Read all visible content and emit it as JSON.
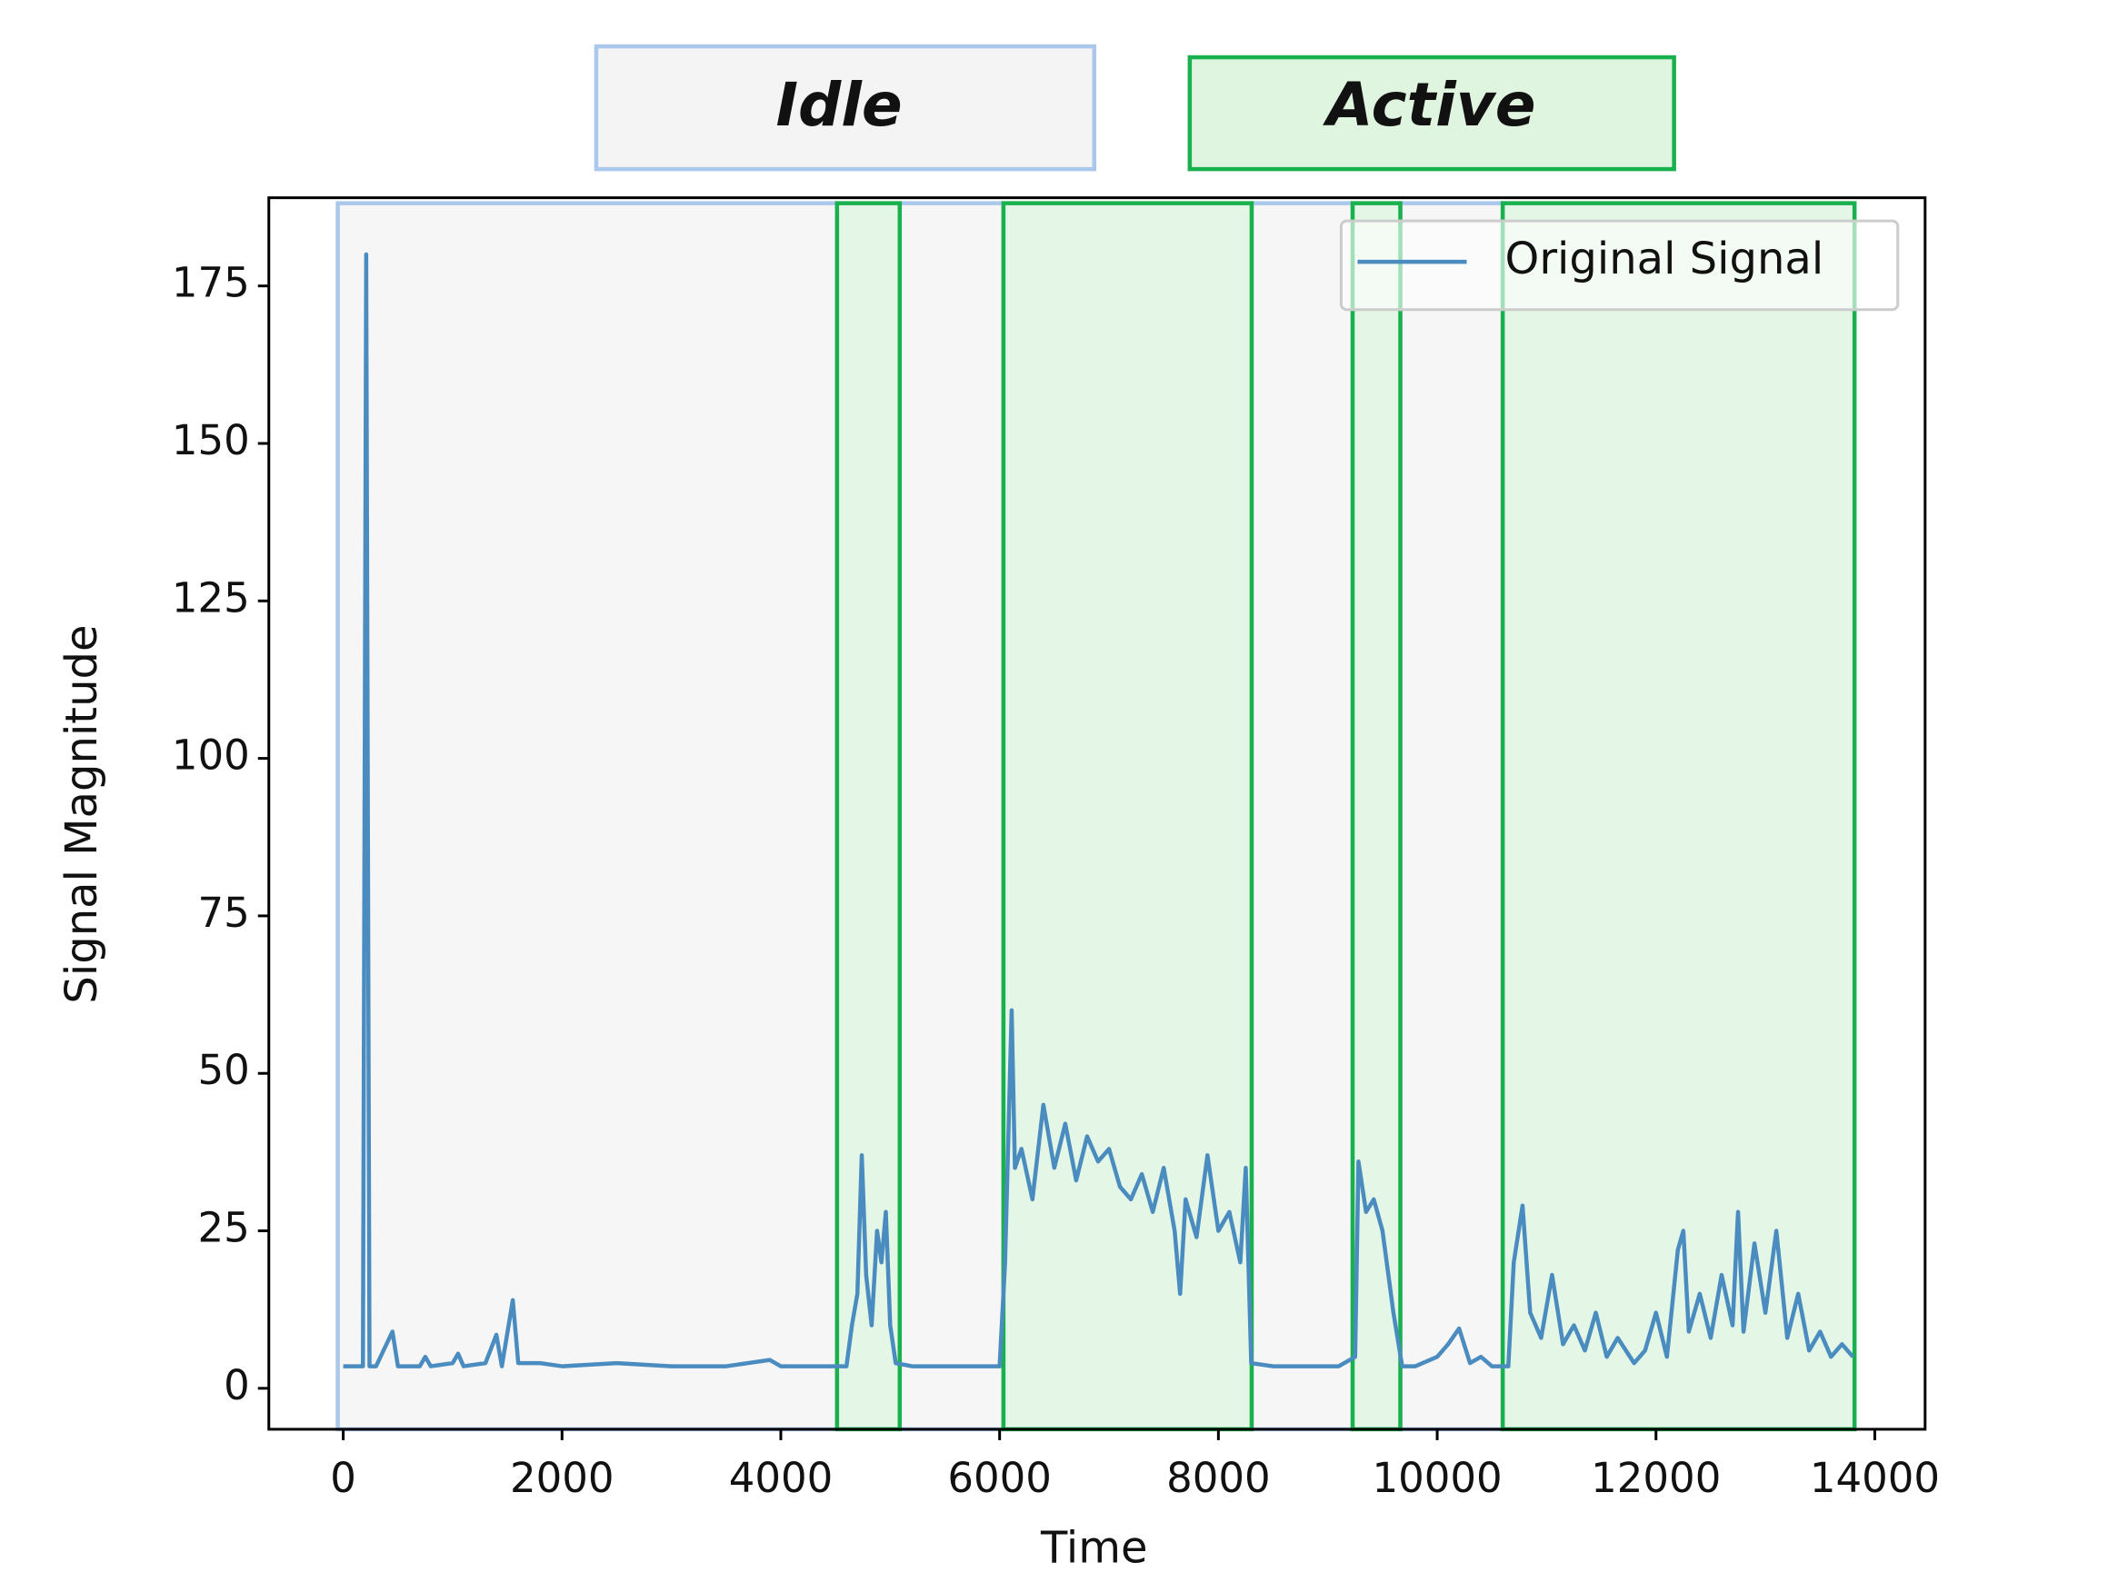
{
  "chart_data": {
    "type": "line",
    "xlabel": "Time",
    "ylabel": "Signal Magnitude",
    "xlim": [
      -680,
      14460
    ],
    "ylim": [
      -6.5,
      189
    ],
    "xticks": [
      0,
      2000,
      4000,
      6000,
      8000,
      10000,
      12000,
      14000
    ],
    "yticks": [
      0,
      25,
      50,
      75,
      100,
      125,
      150,
      175
    ],
    "legend": "upper right",
    "state_labels": [
      {
        "label": "Idle",
        "color": "#0b6fc1",
        "fill": "#f4f4f4",
        "edge": "#a9c8eb",
        "spans": [
          [
            -50,
            4514
          ],
          [
            5087,
            6035
          ],
          [
            8304,
            9227
          ],
          [
            9663,
            10599
          ]
        ]
      },
      {
        "label": "Active",
        "color": "#3a7a28",
        "fill": "#dff5e0",
        "edge": "#19b04e",
        "spans": [
          [
            4514,
            5087
          ],
          [
            6035,
            8304
          ],
          [
            9227,
            9663
          ],
          [
            10599,
            13815
          ]
        ]
      }
    ],
    "x": [
      0,
      100,
      180,
      210,
      240,
      300,
      450,
      500,
      700,
      750,
      800,
      1000,
      1050,
      1100,
      1300,
      1400,
      1450,
      1550,
      1600,
      1800,
      2000,
      2500,
      3000,
      3500,
      3900,
      4000,
      4400,
      4600,
      4650,
      4700,
      4740,
      4780,
      4830,
      4880,
      4920,
      4960,
      5000,
      5050,
      5200,
      5500,
      5800,
      6000,
      6050,
      6080,
      6110,
      6140,
      6200,
      6300,
      6400,
      6500,
      6600,
      6700,
      6800,
      6900,
      7000,
      7100,
      7200,
      7300,
      7400,
      7500,
      7600,
      7650,
      7700,
      7800,
      7900,
      8000,
      8100,
      8200,
      8250,
      8300,
      8500,
      8800,
      9100,
      9250,
      9280,
      9350,
      9420,
      9500,
      9600,
      9680,
      9800,
      10000,
      10100,
      10200,
      10300,
      10400,
      10500,
      10650,
      10700,
      10780,
      10850,
      10950,
      11050,
      11150,
      11250,
      11350,
      11450,
      11550,
      11650,
      11800,
      11900,
      12000,
      12100,
      12200,
      12250,
      12300,
      12400,
      12500,
      12600,
      12700,
      12750,
      12800,
      12900,
      13000,
      13100,
      13200,
      13300,
      13400,
      13500,
      13600,
      13700,
      13800
    ],
    "series": [
      {
        "name": "Original Signal",
        "color": "#4a8cbf",
        "values": [
          3.5,
          3.5,
          3.5,
          180,
          3.5,
          3.5,
          9,
          3.5,
          3.5,
          5,
          3.5,
          4,
          5.5,
          3.5,
          4,
          8.5,
          3.5,
          14,
          4,
          4,
          3.5,
          4,
          3.5,
          3.5,
          4.5,
          3.5,
          3.5,
          3.5,
          10,
          15,
          37,
          18,
          10,
          25,
          20,
          28,
          10,
          4,
          3.5,
          3.5,
          3.5,
          3.5,
          20,
          40,
          60,
          35,
          38,
          30,
          45,
          35,
          42,
          33,
          40,
          36,
          38,
          32,
          30,
          34,
          28,
          35,
          25,
          15,
          30,
          24,
          37,
          25,
          28,
          20,
          35,
          4,
          3.5,
          3.5,
          3.5,
          5,
          36,
          28,
          30,
          25,
          12,
          3.5,
          3.5,
          5,
          7,
          9.5,
          4,
          5,
          3.5,
          3.5,
          20,
          29,
          12,
          8,
          18,
          7,
          10,
          6,
          12,
          5,
          8,
          4,
          6,
          12,
          5,
          22,
          25,
          9,
          15,
          8,
          18,
          10,
          28,
          9,
          23,
          12,
          25,
          8,
          15,
          6,
          9,
          5,
          7,
          5
        ]
      }
    ]
  }
}
